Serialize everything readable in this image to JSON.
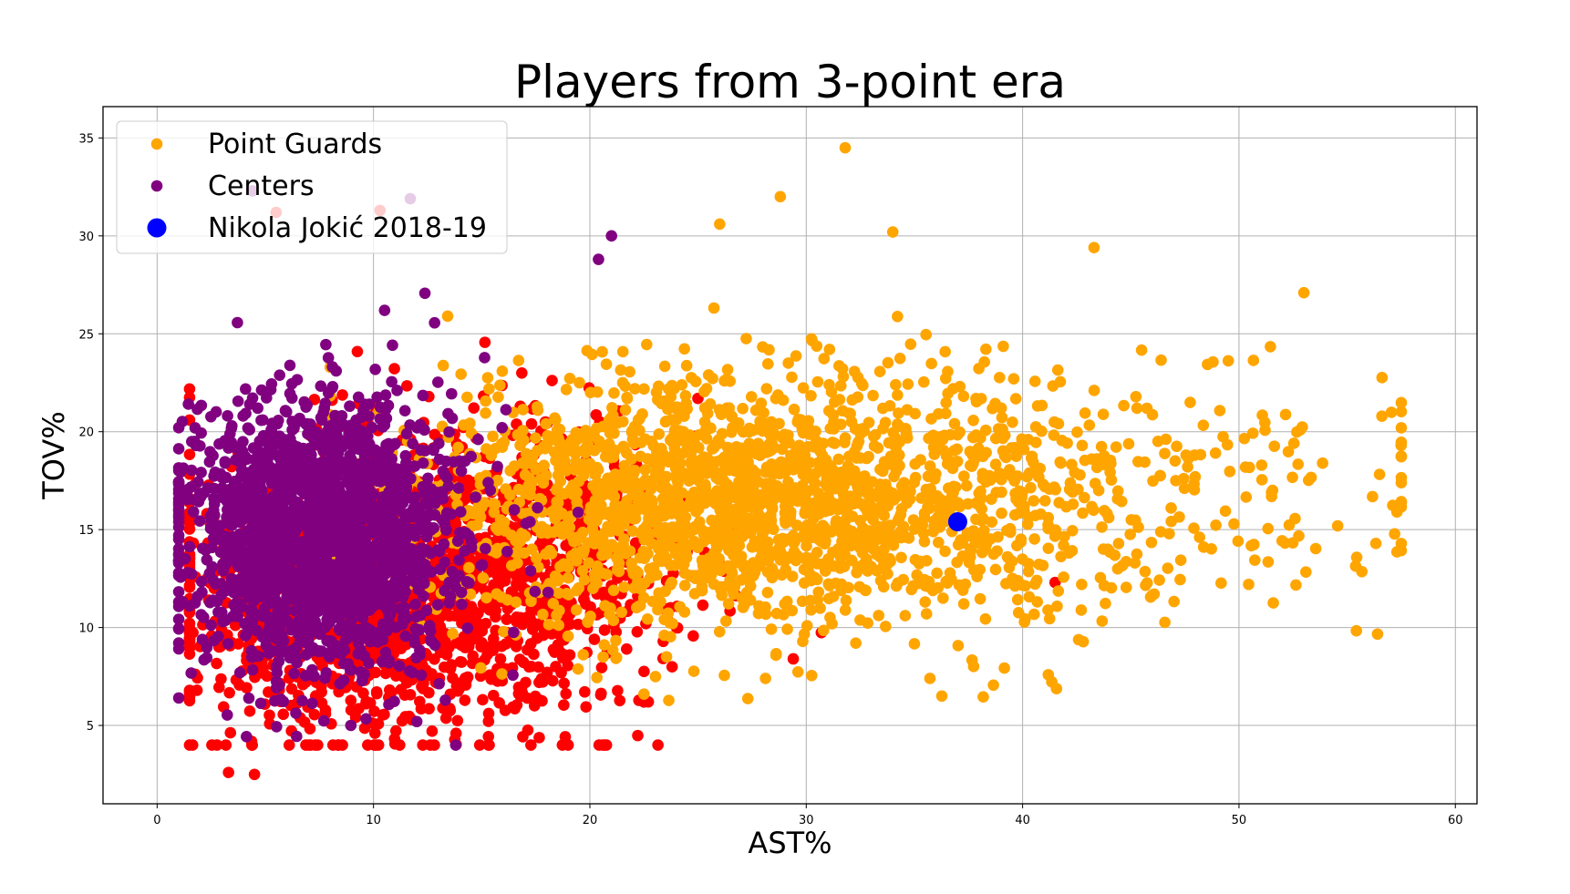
{
  "chart_data": {
    "type": "scatter",
    "title": "Players from 3-point era",
    "xlabel": "AST%",
    "ylabel": "TOV%",
    "xlim": [
      -2.5,
      61
    ],
    "ylim": [
      1,
      36.6
    ],
    "xticks": [
      0,
      10,
      20,
      30,
      40,
      50,
      60
    ],
    "yticks": [
      5,
      10,
      15,
      20,
      25,
      30,
      35
    ],
    "grid": true,
    "legend_position": "top-left",
    "series": [
      {
        "key": "others",
        "color": "#ff0000",
        "count": 1800,
        "distribution": {
          "mean_x": 12,
          "sd_x": 5.5,
          "mean_y": 12.5,
          "sd_y": 3.8,
          "min_x": 1.5,
          "max_x": 46
        }
      },
      {
        "key": "pg",
        "name": "Point Guards",
        "color": "#ffa500",
        "count": 2200,
        "distribution": {
          "mean_x": 27,
          "sd_x": 7.5,
          "mean_y": 16.5,
          "sd_y": 3.2,
          "min_x": 8,
          "max_x": 57.5
        }
      },
      {
        "key": "c",
        "name": "Centers",
        "color": "#800080",
        "count": 2000,
        "distribution": {
          "mean_x": 7.5,
          "sd_x": 3.2,
          "mean_y": 14.8,
          "sd_y": 3.5,
          "min_x": 1,
          "max_x": 27
        }
      },
      {
        "key": "jokic",
        "name": "Nikola Jokić 2018-19",
        "color": "#0000ff",
        "points": [
          {
            "x": 37,
            "y": 15.4
          }
        ]
      }
    ],
    "notable_points": [
      {
        "series": "pg",
        "x": 31.8,
        "y": 34.5
      },
      {
        "series": "pg",
        "x": 28.8,
        "y": 32
      },
      {
        "series": "pg",
        "x": 57.5,
        "y": 20.2
      },
      {
        "series": "pg",
        "x": 57.3,
        "y": 15.9
      },
      {
        "series": "pg",
        "x": 53,
        "y": 27.1
      },
      {
        "series": "pg",
        "x": 43.3,
        "y": 29.4
      },
      {
        "series": "pg",
        "x": 26,
        "y": 30.6
      },
      {
        "series": "pg",
        "x": 34,
        "y": 30.2
      },
      {
        "series": "pg",
        "x": 22.5,
        "y": 6.6
      },
      {
        "series": "others",
        "x": 3.3,
        "y": 2.6
      },
      {
        "series": "others",
        "x": 4.5,
        "y": 2.5
      },
      {
        "series": "others",
        "x": 29.4,
        "y": 8.4
      },
      {
        "series": "others",
        "x": 41.5,
        "y": 12.3
      },
      {
        "series": "others",
        "x": 5.5,
        "y": 31.2
      },
      {
        "series": "others",
        "x": 10.3,
        "y": 31.3
      },
      {
        "series": "c",
        "x": 11.7,
        "y": 31.9
      },
      {
        "series": "c",
        "x": 4.4,
        "y": 32.3
      },
      {
        "series": "c",
        "x": 21,
        "y": 30
      },
      {
        "series": "c",
        "x": 20.4,
        "y": 28.8
      },
      {
        "series": "c",
        "x": 12,
        "y": 5.2
      }
    ]
  },
  "legend": [
    {
      "label": "Point Guards",
      "color": "#ffa500",
      "marker": "small"
    },
    {
      "label": "Centers",
      "color": "#800080",
      "marker": "small"
    },
    {
      "label": "Nikola Jokić 2018-19",
      "color": "#0000ff",
      "marker": "large"
    }
  ]
}
